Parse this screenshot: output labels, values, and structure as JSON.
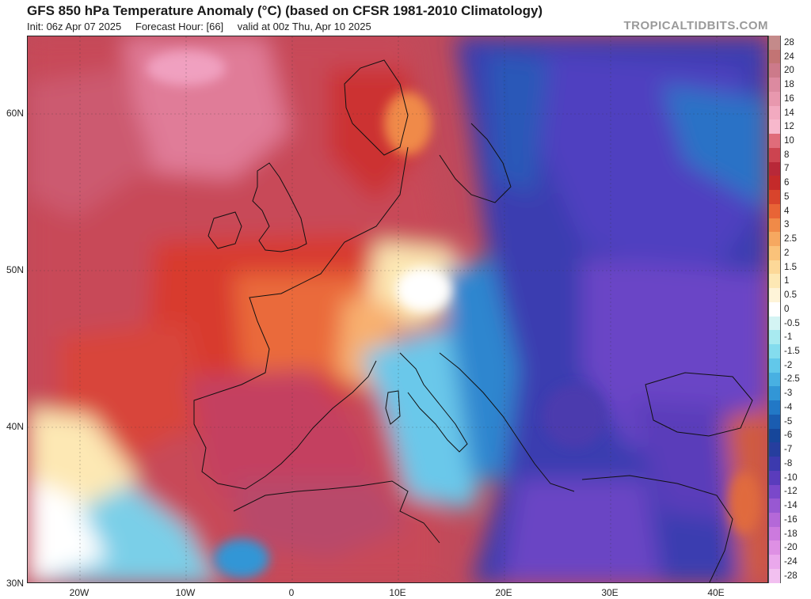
{
  "header": {
    "title": "GFS 850 hPa Temperature Anomaly (°C) (based on CFSR 1981-2010 Climatology)",
    "init": "Init: 06z Apr 07 2025",
    "forecast_hour": "Forecast Hour: [66]",
    "valid": "valid at 00z Thu, Apr 10 2025",
    "brand": "TROPICALTIDBITS.COM"
  },
  "axes": {
    "lat_labels": [
      "60N",
      "50N",
      "40N",
      "30N"
    ],
    "lon_labels": [
      "20W",
      "10W",
      "0",
      "10E",
      "20E",
      "30E",
      "40E"
    ]
  },
  "colorbar": {
    "labels": [
      "28",
      "24",
      "20",
      "18",
      "16",
      "14",
      "12",
      "10",
      "8",
      "7",
      "6",
      "5",
      "4",
      "3",
      "2.5",
      "2",
      "1.5",
      "1",
      "0.5",
      "0",
      "-0.5",
      "-1",
      "-1.5",
      "-2",
      "-2.5",
      "-3",
      "-4",
      "-5",
      "-6",
      "-7",
      "-8",
      "-10",
      "-12",
      "-14",
      "-16",
      "-18",
      "-20",
      "-24",
      "-28"
    ],
    "colors": [
      "#c48a8a",
      "#c27474",
      "#cc7a8a",
      "#dc8aa0",
      "#e898ae",
      "#f2aac0",
      "#f7b8cc",
      "#e06c7a",
      "#cc4450",
      "#b82838",
      "#c42a2a",
      "#d8442c",
      "#e86436",
      "#f08a48",
      "#f6a860",
      "#fac27a",
      "#fcd898",
      "#fde8b4",
      "#fef4d8",
      "#ffffff",
      "#d4f4f4",
      "#a8eaf0",
      "#84dcee",
      "#62c8ea",
      "#48b0e2",
      "#3296d6",
      "#2278c6",
      "#1a5cb0",
      "#16469a",
      "#263e9e",
      "#3c3aae",
      "#5a3cbc",
      "#7a48ca",
      "#9858d2",
      "#b468d8",
      "#cc7ade",
      "#de90e4",
      "#eaa8ec",
      "#f2c0f0"
    ]
  }
}
